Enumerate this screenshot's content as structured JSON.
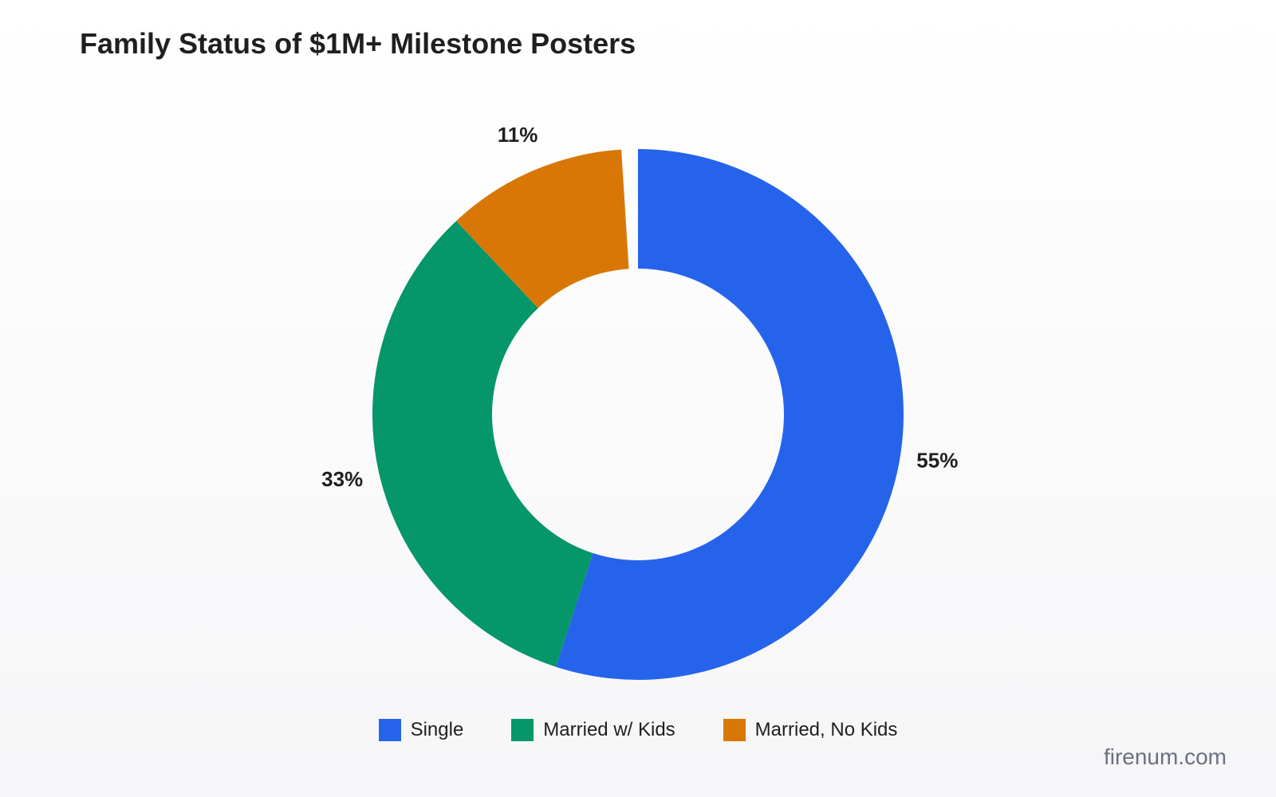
{
  "title": "Family Status of $1M+ Milestone Posters",
  "watermark": "firenum.com",
  "chart_data": {
    "type": "pie",
    "style": "donut",
    "title": "Family Status of $1M+ Milestone Posters",
    "start_angle": "top, clockwise",
    "legend_placement": "bottom-center",
    "series": [
      {
        "name": "Single",
        "value": 55,
        "label": "55%",
        "color": "#2563eb"
      },
      {
        "name": "Married w/ Kids",
        "value": 33,
        "label": "33%",
        "color": "#059669"
      },
      {
        "name": "Married, No Kids",
        "value": 11,
        "label": "11%",
        "color": "#d97706"
      }
    ]
  }
}
